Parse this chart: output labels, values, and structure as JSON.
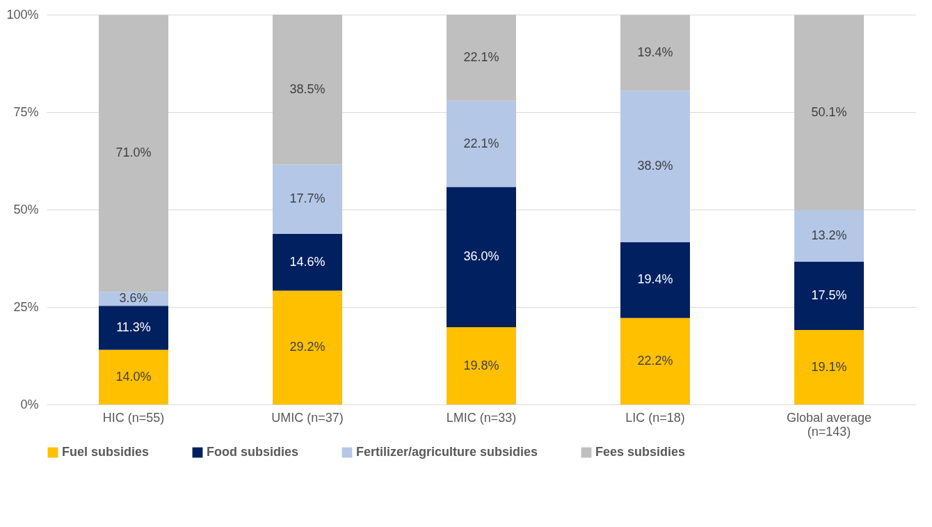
{
  "chart_data": {
    "type": "bar",
    "stacked": true,
    "categories": [
      "HIC (n=55)",
      "UMIC (n=37)",
      "LMIC (n=33)",
      "LIC (n=18)",
      "Global average (n=143)"
    ],
    "series": [
      {
        "name": "Fuel subsidies",
        "color": "#ffc000",
        "values": [
          14.0,
          29.2,
          19.8,
          22.2,
          19.1
        ],
        "value_labels": [
          "14.0%",
          "29.2%",
          "19.8%",
          "22.2%",
          "19.1%"
        ]
      },
      {
        "name": "Food subsidies",
        "color": "#002060",
        "values": [
          11.3,
          14.6,
          36.0,
          19.4,
          17.5
        ],
        "value_labels": [
          "11.3%",
          "14.6%",
          "36.0%",
          "19.4%",
          "17.5%"
        ]
      },
      {
        "name": "Fertilizer/agriculture subsidies",
        "color": "#b4c7e7",
        "values": [
          3.6,
          17.7,
          22.1,
          38.9,
          13.2
        ],
        "value_labels": [
          "3.6%",
          "17.7%",
          "22.1%",
          "38.9%",
          "13.2%"
        ]
      },
      {
        "name": "Fees subsidies",
        "color": "#bfbfbf",
        "values": [
          71.0,
          38.5,
          22.1,
          19.4,
          50.1
        ],
        "value_labels": [
          "71.0%",
          "38.5%",
          "22.1%",
          "19.4%",
          "50.1%"
        ]
      }
    ],
    "ylim": [
      0,
      100
    ],
    "yticks": [
      {
        "value": 0,
        "label": "0%"
      },
      {
        "value": 25,
        "label": "25%"
      },
      {
        "value": 50,
        "label": "50%"
      },
      {
        "value": 75,
        "label": "75%"
      },
      {
        "value": 100,
        "label": "100%"
      }
    ],
    "grid": "y",
    "legend": "bottom"
  }
}
